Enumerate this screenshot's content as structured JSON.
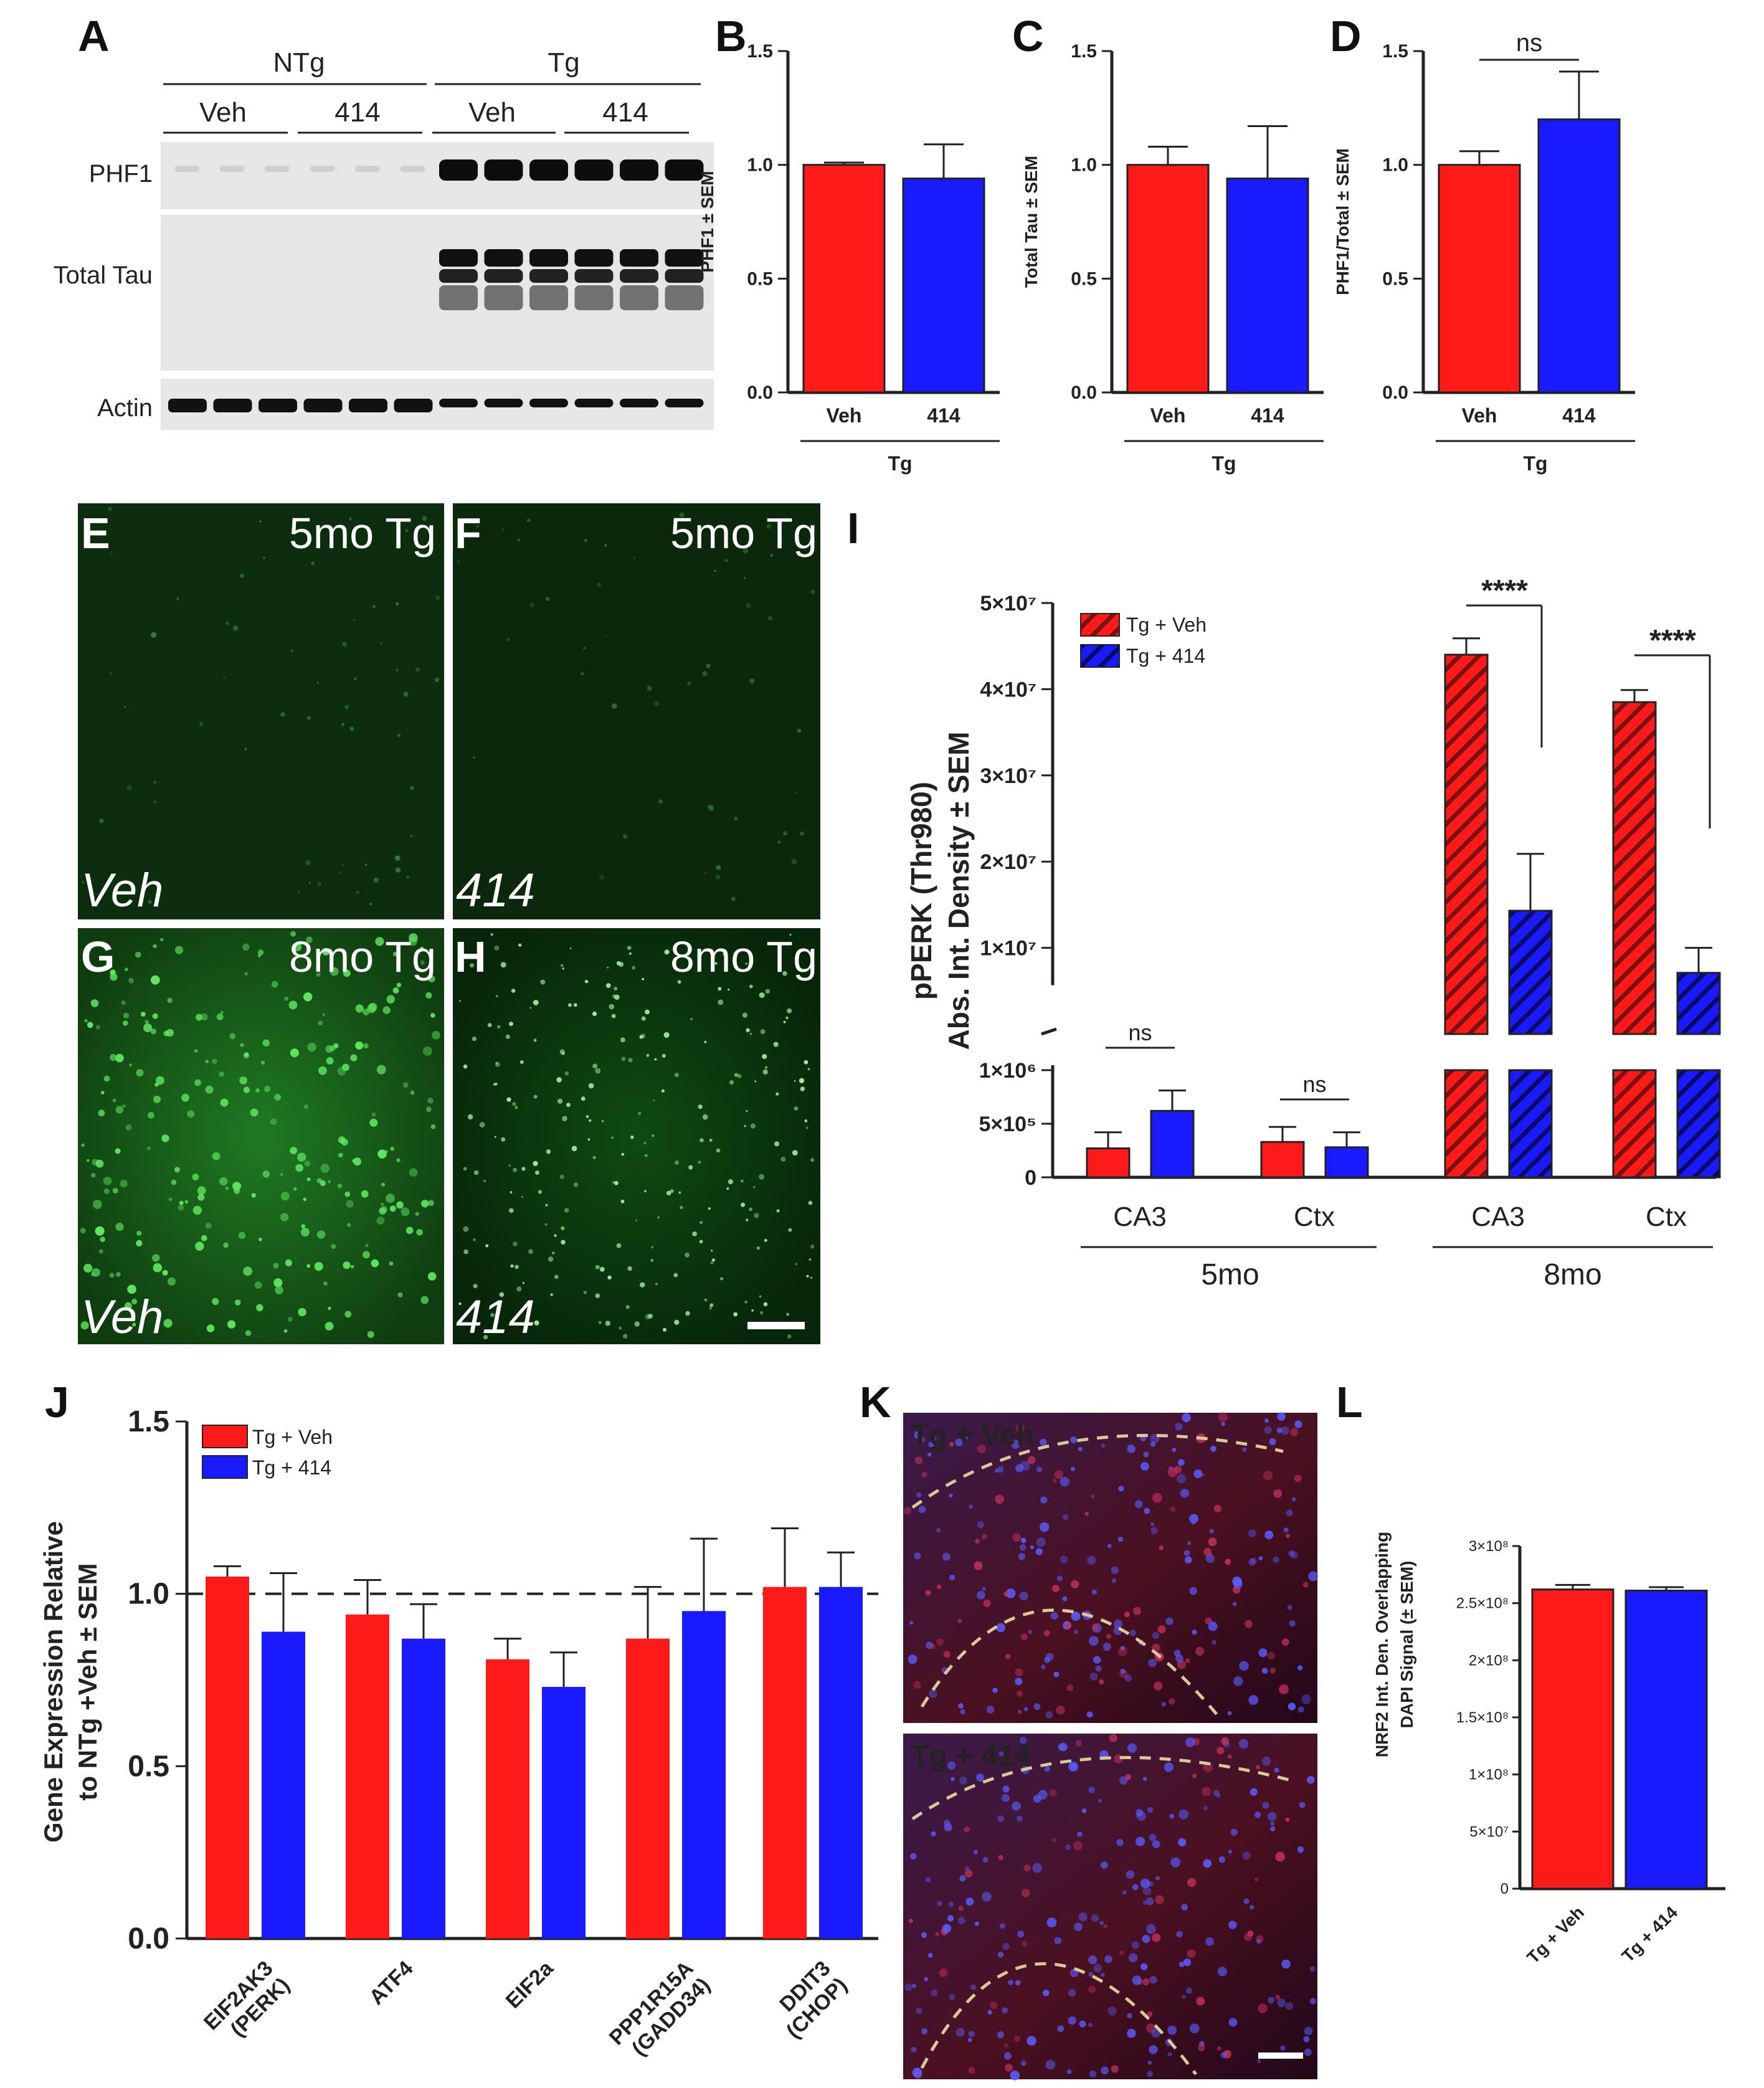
{
  "panel_labels": {
    "a": "A",
    "b": "B",
    "c": "C",
    "d": "D",
    "e": "E",
    "f": "F",
    "g": "G",
    "h": "H",
    "i": "I",
    "j": "J",
    "k": "K",
    "l": "L"
  },
  "blot": {
    "groups": [
      "NTg",
      "Tg"
    ],
    "treatments": [
      "Veh",
      "414",
      "Veh",
      "414"
    ],
    "rows": [
      "PHF1",
      "Total Tau",
      "Actin"
    ]
  },
  "micrographs": {
    "e": {
      "age": "5mo Tg",
      "treatment": "Veh"
    },
    "f": {
      "age": "5mo Tg",
      "treatment": "414"
    },
    "g": {
      "age": "8mo Tg",
      "treatment": "Veh"
    },
    "h": {
      "age": "8mo Tg",
      "treatment": "414"
    },
    "k_top": "Tg + Veh",
    "k_bottom": "Tg + 414"
  },
  "colors": {
    "veh": "#ff1a1a",
    "drug": "#1a1aff",
    "hatch_veh": "#7a1010",
    "hatch_drug": "#0b0b66"
  },
  "chart_data": [
    {
      "id": "B",
      "type": "bar",
      "ylabel": "PHF1 ± SEM",
      "ylim": [
        0,
        1.5
      ],
      "yticks": [
        "0.0",
        "0.5",
        "1.0",
        "1.5"
      ],
      "categories": [
        "Veh",
        "414"
      ],
      "group_label": "Tg",
      "values": [
        1.0,
        0.94
      ],
      "errors": [
        0.01,
        0.15
      ],
      "annotation": ""
    },
    {
      "id": "C",
      "type": "bar",
      "ylabel": "Total Tau ± SEM",
      "ylim": [
        0,
        1.5
      ],
      "yticks": [
        "0.0",
        "0.5",
        "1.0",
        "1.5"
      ],
      "categories": [
        "Veh",
        "414"
      ],
      "group_label": "Tg",
      "values": [
        1.0,
        0.94
      ],
      "errors": [
        0.08,
        0.23
      ],
      "annotation": ""
    },
    {
      "id": "D",
      "type": "bar",
      "ylabel": "PHF1/Total ± SEM",
      "ylim": [
        0,
        1.5
      ],
      "yticks": [
        "0.0",
        "0.5",
        "1.0",
        "1.5"
      ],
      "categories": [
        "Veh",
        "414"
      ],
      "group_label": "Tg",
      "values": [
        1.0,
        1.2
      ],
      "errors": [
        0.06,
        0.21
      ],
      "annotation": "ns"
    },
    {
      "id": "I",
      "type": "bar",
      "ylabel_line1": "pPERK (Thr980)",
      "ylabel_line2": "Abs. Int. Density ± SEM",
      "legend": [
        "Tg + Veh",
        "Tg + 414"
      ],
      "legend_position": "top-left",
      "yticks_lower": [
        "0",
        "5×10⁵",
        "1×10⁶"
      ],
      "yticks_upper": [
        "1×10⁷",
        "2×10⁷",
        "3×10⁷",
        "4×10⁷",
        "5×10⁷"
      ],
      "categories": [
        "CA3",
        "Ctx",
        "CA3",
        "Ctx"
      ],
      "age_groups": [
        "5mo",
        "8mo"
      ],
      "series": [
        {
          "name": "Tg + Veh",
          "values": [
            270000,
            330000,
            44000000,
            38500000
          ],
          "errors": [
            150000,
            140000,
            1900000,
            1400000
          ]
        },
        {
          "name": "Tg + 414",
          "values": [
            620000,
            280000,
            14300000,
            7100000
          ],
          "errors": [
            190000,
            140000,
            6600000,
            2900000
          ]
        }
      ],
      "annotations": [
        "ns",
        "ns",
        "****",
        "****"
      ]
    },
    {
      "id": "J",
      "type": "bar",
      "ylabel_line1": "Gene Expression Relative",
      "ylabel_line2": "to NTg +Veh ± SEM",
      "legend": [
        "Tg + Veh",
        "Tg + 414"
      ],
      "legend_position": "top-left",
      "ylim": [
        0,
        1.5
      ],
      "yticks": [
        "0.0",
        "0.5",
        "1.0",
        "1.5"
      ],
      "reference_line": 1.0,
      "categories": [
        [
          "EIF2AK3",
          "(PERK)"
        ],
        [
          "ATF4"
        ],
        [
          "EIF2a"
        ],
        [
          "PPP1R15A",
          "(GADD34)"
        ],
        [
          "DDIT3",
          "(CHOP)"
        ]
      ],
      "series": [
        {
          "name": "Tg + Veh",
          "values": [
            1.05,
            0.94,
            0.81,
            0.87,
            1.02
          ],
          "errors": [
            0.03,
            0.1,
            0.06,
            0.15,
            0.17
          ]
        },
        {
          "name": "Tg + 414",
          "values": [
            0.89,
            0.87,
            0.73,
            0.95,
            1.02
          ],
          "errors": [
            0.17,
            0.1,
            0.1,
            0.21,
            0.1
          ]
        }
      ]
    },
    {
      "id": "L",
      "type": "bar",
      "ylabel_line1": "NRF2 Int. Den. Overlapping",
      "ylabel_line2": "DAPI Signal (± SEM)",
      "ylim": [
        0,
        300000000
      ],
      "yticks": [
        "0",
        "5×10⁷",
        "1×10⁸",
        "1.5×10⁸",
        "2×10⁸",
        "2.5×10⁸",
        "3×10⁸"
      ],
      "categories": [
        "Tg + Veh",
        "Tg + 414"
      ],
      "values": [
        262000000,
        261000000
      ],
      "errors": [
        4000000,
        3000000
      ]
    }
  ]
}
